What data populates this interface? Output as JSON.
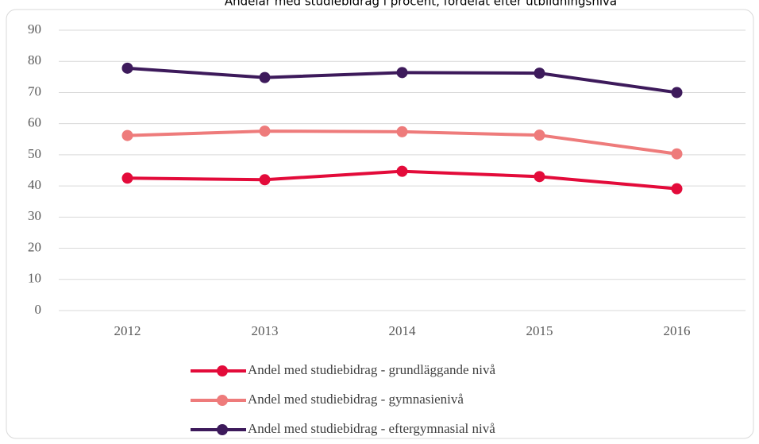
{
  "chart_data": {
    "type": "line",
    "title": "Andelar med studiebidrag i procent, fördelat efter utbildningsnivå",
    "categories": [
      "2012",
      "2013",
      "2014",
      "2015",
      "2016"
    ],
    "series": [
      {
        "name": "Andel med studiebidrag -  grundläggande nivå",
        "color": "#e30b3a",
        "values": [
          42.5,
          42.0,
          44.7,
          43.0,
          39.1
        ]
      },
      {
        "name": "Andel med studiebidrag - gymnasienivå",
        "color": "#ee7b7b",
        "values": [
          56.2,
          57.6,
          57.4,
          56.3,
          50.3
        ]
      },
      {
        "name": "Andel med studiebidrag - eftergymnasial nivå",
        "color": "#3d1a5b",
        "values": [
          77.8,
          74.8,
          76.4,
          76.2,
          70.0
        ]
      }
    ],
    "ylim": [
      0,
      90
    ],
    "yticks": [
      0,
      10,
      20,
      30,
      40,
      50,
      60,
      70,
      80,
      90
    ],
    "grid": true,
    "legend": "bottom"
  }
}
